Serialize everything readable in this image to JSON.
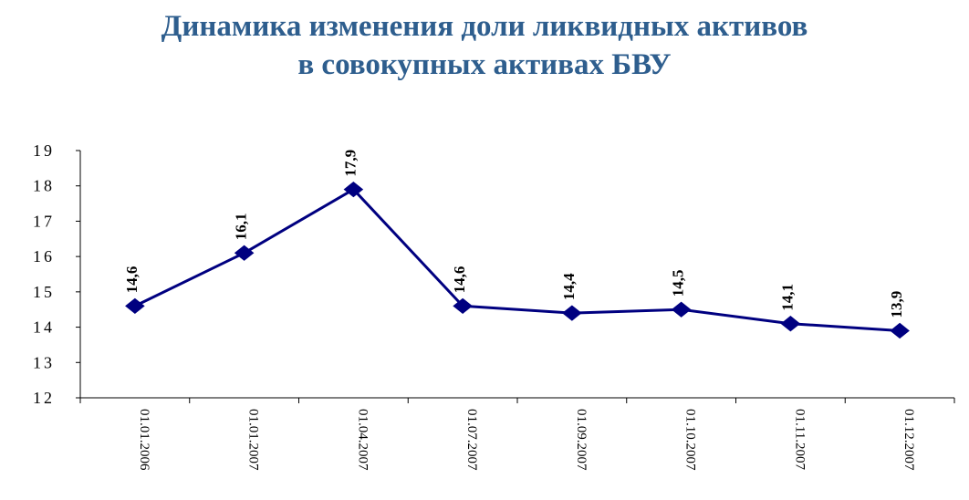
{
  "title": {
    "line1": "Динамика изменения доли ликвидных активов",
    "line2": "в совокупных активах БВУ"
  },
  "chart_data": {
    "type": "line",
    "title": "Динамика изменения доли ликвидных активов в совокупных активах БВУ",
    "xlabel": "",
    "ylabel": "",
    "categories": [
      "01.01.2006",
      "01.01.2007",
      "01.04.2007",
      "01.07.2007",
      "01.09.2007",
      "01.10.2007",
      "01.11.2007",
      "01.12.2007"
    ],
    "series": [
      {
        "values": [
          14.6,
          16.1,
          17.9,
          14.6,
          14.4,
          14.5,
          14.1,
          13.9
        ],
        "labels": [
          "14,6",
          "16,1",
          "17,9",
          "14,6",
          "14,4",
          "14,5",
          "14,1",
          "13,9"
        ],
        "color": "#000080",
        "marker": "diamond"
      }
    ],
    "ylim": [
      12,
      19
    ],
    "yticks": [
      12,
      13,
      14,
      15,
      16,
      17,
      18,
      19
    ],
    "grid": false,
    "legend": "none"
  }
}
